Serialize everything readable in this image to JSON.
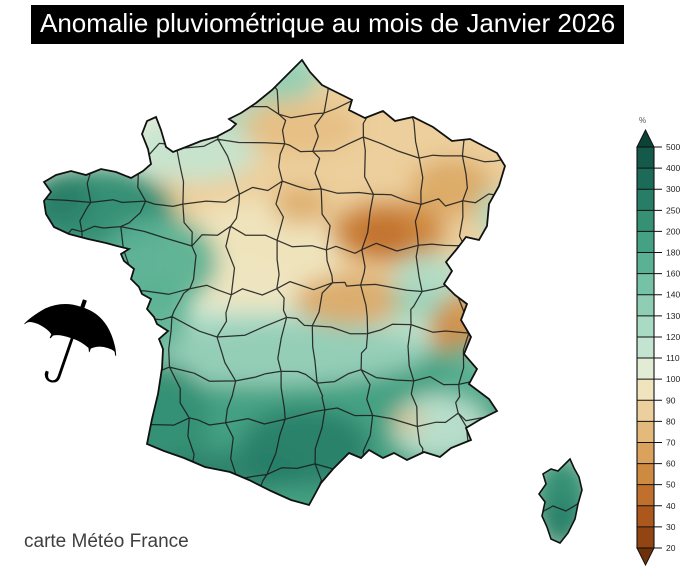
{
  "title": "Anomalie pluviométrique au mois de Janvier 2026",
  "credit": "carte Météo France",
  "umbrella_icon": "☂",
  "colors": {
    "title_bg": "#000000",
    "title_fg": "#ffffff",
    "background": "#ffffff",
    "border_lines": "#1b1b1b",
    "coastline": "#111111"
  },
  "legend": {
    "unit": "%",
    "ticks": [
      500,
      400,
      300,
      250,
      200,
      180,
      160,
      140,
      130,
      120,
      110,
      100,
      90,
      80,
      70,
      60,
      50,
      40,
      30,
      20
    ],
    "band_colors_top_to_bottom": [
      "#14594a",
      "#1c6b58",
      "#287d66",
      "#359074",
      "#44a183",
      "#5bb194",
      "#76c2a6",
      "#8fceb5",
      "#a9dac4",
      "#c4e4d2",
      "#e2ecd5",
      "#f0e4bf",
      "#eccf9c",
      "#e4b97c",
      "#daa25c",
      "#cf8a41",
      "#c0702c",
      "#ac581d",
      "#934413"
    ],
    "arrow_top_color": "#0d4337",
    "arrow_bottom_color": "#6e3008"
  },
  "map": {
    "region": "France métropolitaine et Corse",
    "anomaly_areas": [
      {
        "area": "Bretagne / Ouest",
        "reading": "excédent ≈ 180–250 %",
        "color": "#359074"
      },
      {
        "area": "Nord - Bassin parisien - Nord-Est",
        "reading": "déficit ≈ 70–100 %",
        "color": "#eccf9c"
      },
      {
        "area": "Centre-Est (Bourgogne / Champagne)",
        "reading": "déficit ≈ 40–70 %",
        "color": "#c0702c"
      },
      {
        "area": "Savoie / Alpes du Nord",
        "reading": "déficit ≈ 50–80 %",
        "color": "#cf8a41"
      },
      {
        "area": "Moitié sud / Sud-Ouest",
        "reading": "excédent ≈ 160–250 %",
        "color": "#44a183"
      },
      {
        "area": "Pyrénées / Cévennes",
        "reading": "excédent ≈ 250–400 %",
        "color": "#287d66"
      },
      {
        "area": "Corse",
        "reading": "excédent ≈ 200–300 %",
        "color": "#359074"
      }
    ]
  }
}
